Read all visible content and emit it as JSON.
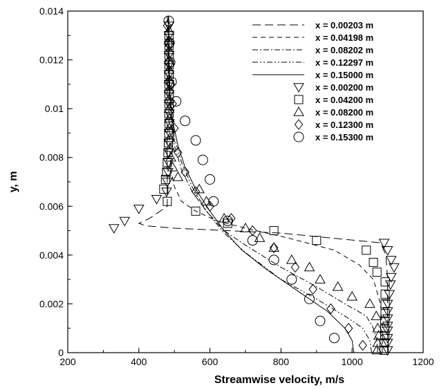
{
  "chart_data": {
    "type": "line",
    "xlabel": "Streamwise velocity, m/s",
    "ylabel": "y, m",
    "xlim": [
      200,
      1200
    ],
    "ylim": [
      0,
      0.014
    ],
    "xticks": [
      "200",
      "400",
      "600",
      "800",
      "1000",
      "1200"
    ],
    "yticks": [
      "0",
      "0.002",
      "0.004",
      "0.006",
      "0.008",
      "0.01",
      "0.012",
      "0.014"
    ],
    "grid": false,
    "legend_position": "top-right",
    "series": [
      {
        "name": "x = 0.00203 m",
        "kind": "line",
        "dash": "long-dash",
        "points": [
          [
            1100,
            0
          ],
          [
            1100,
            0.0015
          ],
          [
            1100,
            0.003
          ],
          [
            1095,
            0.004
          ],
          [
            1080,
            0.0045
          ],
          [
            800,
            0.0049
          ],
          [
            500,
            0.0051
          ],
          [
            420,
            0.0052
          ],
          [
            400,
            0.0053
          ],
          [
            430,
            0.0055
          ],
          [
            480,
            0.006
          ],
          [
            480,
            0.008
          ],
          [
            480,
            0.0138
          ]
        ]
      },
      {
        "name": "x = 0.04198 m",
        "kind": "line",
        "dash": "dash",
        "points": [
          [
            1085,
            0
          ],
          [
            1085,
            0.001
          ],
          [
            1080,
            0.002
          ],
          [
            1060,
            0.003
          ],
          [
            1020,
            0.0036
          ],
          [
            950,
            0.0042
          ],
          [
            820,
            0.0047
          ],
          [
            700,
            0.0051
          ],
          [
            620,
            0.0054
          ],
          [
            560,
            0.0058
          ],
          [
            520,
            0.0062
          ],
          [
            500,
            0.0068
          ],
          [
            490,
            0.0075
          ],
          [
            485,
            0.009
          ],
          [
            483,
            0.012
          ],
          [
            482,
            0.0138
          ]
        ]
      },
      {
        "name": "x = 0.08202 m",
        "kind": "line",
        "dash": "dash-dot",
        "points": [
          [
            1072,
            0
          ],
          [
            1070,
            0.0005
          ],
          [
            1060,
            0.001
          ],
          [
            1040,
            0.0015
          ],
          [
            980,
            0.002
          ],
          [
            900,
            0.0027
          ],
          [
            800,
            0.0035
          ],
          [
            700,
            0.0044
          ],
          [
            640,
            0.005
          ],
          [
            590,
            0.0058
          ],
          [
            550,
            0.0066
          ],
          [
            520,
            0.0075
          ],
          [
            500,
            0.0085
          ],
          [
            490,
            0.0095
          ],
          [
            485,
            0.011
          ],
          [
            483,
            0.0138
          ]
        ]
      },
      {
        "name": "x = 0.12297 m",
        "kind": "line",
        "dash": "dash-dot-dot",
        "points": [
          [
            1055,
            0
          ],
          [
            1050,
            0.0005
          ],
          [
            1030,
            0.001
          ],
          [
            980,
            0.0015
          ],
          [
            900,
            0.0022
          ],
          [
            800,
            0.003
          ],
          [
            700,
            0.0041
          ],
          [
            640,
            0.0049
          ],
          [
            590,
            0.0058
          ],
          [
            550,
            0.0068
          ],
          [
            520,
            0.0078
          ],
          [
            500,
            0.0088
          ],
          [
            490,
            0.0098
          ],
          [
            485,
            0.011
          ],
          [
            483,
            0.0138
          ]
        ]
      },
      {
        "name": "x = 0.15000 m",
        "kind": "line",
        "dash": "solid",
        "points": [
          [
            1005,
            0
          ],
          [
            1000,
            0.0005
          ],
          [
            980,
            0.001
          ],
          [
            930,
            0.0017
          ],
          [
            850,
            0.0025
          ],
          [
            760,
            0.0034
          ],
          [
            690,
            0.0042
          ],
          [
            640,
            0.005
          ],
          [
            600,
            0.0058
          ],
          [
            560,
            0.0067
          ],
          [
            530,
            0.0076
          ],
          [
            510,
            0.0085
          ],
          [
            495,
            0.0095
          ],
          [
            488,
            0.0105
          ],
          [
            485,
            0.012
          ],
          [
            484,
            0.0138
          ]
        ]
      },
      {
        "name": "x = 0.00200 m",
        "kind": "marker",
        "marker": "triangle-down",
        "points": [
          [
            1100,
            0.0001
          ],
          [
            1100,
            0.0004
          ],
          [
            1100,
            0.0006
          ],
          [
            1100,
            0.0009
          ],
          [
            1100,
            0.0011
          ],
          [
            1100,
            0.0014
          ],
          [
            1100,
            0.0017
          ],
          [
            1100,
            0.002
          ],
          [
            1105,
            0.0024
          ],
          [
            1108,
            0.0028
          ],
          [
            1110,
            0.0031
          ],
          [
            1118,
            0.0035
          ],
          [
            1110,
            0.0038
          ],
          [
            1100,
            0.0042
          ],
          [
            1090,
            0.0045
          ],
          [
            330,
            0.0051
          ],
          [
            360,
            0.0054
          ],
          [
            400,
            0.0059
          ],
          [
            450,
            0.0063
          ],
          [
            478,
            0.0066
          ],
          [
            480,
            0.007
          ],
          [
            482,
            0.0074
          ],
          [
            483,
            0.0078
          ],
          [
            484,
            0.0082
          ],
          [
            485,
            0.0086
          ],
          [
            486,
            0.009
          ],
          [
            486,
            0.0094
          ],
          [
            486,
            0.0098
          ],
          [
            485,
            0.0102
          ],
          [
            485,
            0.0106
          ],
          [
            485,
            0.011
          ],
          [
            485,
            0.0114
          ],
          [
            485,
            0.0118
          ],
          [
            485,
            0.0122
          ],
          [
            485,
            0.0126
          ],
          [
            485,
            0.013
          ],
          [
            485,
            0.0134
          ]
        ]
      },
      {
        "name": "x = 0.04200 m",
        "kind": "marker",
        "marker": "square",
        "points": [
          [
            1090,
            0.0001
          ],
          [
            1090,
            0.0004
          ],
          [
            1092,
            0.0007
          ],
          [
            1092,
            0.001
          ],
          [
            1092,
            0.0013
          ],
          [
            1093,
            0.0016
          ],
          [
            1093,
            0.002
          ],
          [
            1093,
            0.0024
          ],
          [
            1093,
            0.0029
          ],
          [
            1070,
            0.0033
          ],
          [
            1060,
            0.0037
          ],
          [
            1040,
            0.0042
          ],
          [
            900,
            0.0046
          ],
          [
            780,
            0.005
          ],
          [
            650,
            0.0053
          ],
          [
            560,
            0.0058
          ],
          [
            480,
            0.0062
          ],
          [
            470,
            0.0067
          ],
          [
            475,
            0.0071
          ],
          [
            478,
            0.0074
          ],
          [
            480,
            0.0078
          ],
          [
            482,
            0.0082
          ],
          [
            483,
            0.0086
          ],
          [
            484,
            0.009
          ],
          [
            485,
            0.0094
          ],
          [
            485,
            0.0098
          ],
          [
            485,
            0.0102
          ],
          [
            485,
            0.0106
          ],
          [
            485,
            0.011
          ],
          [
            485,
            0.0114
          ],
          [
            485,
            0.0118
          ],
          [
            485,
            0.0122
          ],
          [
            485,
            0.0126
          ],
          [
            485,
            0.013
          ]
        ]
      },
      {
        "name": "x = 0.08200 m",
        "kind": "marker",
        "marker": "triangle-up",
        "points": [
          [
            1070,
            0.0001
          ],
          [
            1072,
            0.0004
          ],
          [
            1075,
            0.0007
          ],
          [
            1072,
            0.001
          ],
          [
            1068,
            0.0015
          ],
          [
            1050,
            0.002
          ],
          [
            1000,
            0.0023
          ],
          [
            960,
            0.0027
          ],
          [
            910,
            0.003
          ],
          [
            880,
            0.0035
          ],
          [
            830,
            0.0038
          ],
          [
            780,
            0.0043
          ],
          [
            740,
            0.0047
          ],
          [
            700,
            0.0051
          ],
          [
            640,
            0.0055
          ],
          [
            590,
            0.0062
          ],
          [
            570,
            0.0067
          ],
          [
            510,
            0.0072
          ],
          [
            495,
            0.0076
          ],
          [
            490,
            0.008
          ],
          [
            488,
            0.0084
          ],
          [
            487,
            0.0088
          ],
          [
            486,
            0.0092
          ],
          [
            486,
            0.0096
          ],
          [
            485,
            0.01
          ],
          [
            485,
            0.0104
          ],
          [
            485,
            0.0108
          ],
          [
            485,
            0.0112
          ],
          [
            485,
            0.0116
          ],
          [
            485,
            0.012
          ],
          [
            485,
            0.0124
          ],
          [
            485,
            0.0128
          ],
          [
            485,
            0.0132
          ]
        ]
      },
      {
        "name": "x = 0.12300 m",
        "kind": "marker",
        "marker": "diamond",
        "points": [
          [
            1030,
            0.0003
          ],
          [
            990,
            0.001
          ],
          [
            940,
            0.0018
          ],
          [
            890,
            0.0026
          ],
          [
            840,
            0.0035
          ],
          [
            780,
            0.0043
          ],
          [
            720,
            0.005
          ],
          [
            660,
            0.0055
          ],
          [
            600,
            0.006
          ],
          [
            560,
            0.0066
          ],
          [
            530,
            0.0074
          ],
          [
            510,
            0.0082
          ],
          [
            500,
            0.0092
          ],
          [
            495,
            0.0102
          ],
          [
            490,
            0.011
          ],
          [
            488,
            0.0118
          ],
          [
            487,
            0.0126
          ],
          [
            480,
            0.0134
          ]
        ]
      },
      {
        "name": "x = 0.15300 m",
        "kind": "marker",
        "marker": "circle",
        "points": [
          [
            950,
            0.0006
          ],
          [
            910,
            0.0013
          ],
          [
            880,
            0.0022
          ],
          [
            830,
            0.003
          ],
          [
            780,
            0.0038
          ],
          [
            720,
            0.0046
          ],
          [
            650,
            0.0054
          ],
          [
            610,
            0.0062
          ],
          [
            600,
            0.0071
          ],
          [
            580,
            0.0079
          ],
          [
            560,
            0.0087
          ],
          [
            530,
            0.0095
          ],
          [
            505,
            0.0103
          ],
          [
            492,
            0.0111
          ],
          [
            488,
            0.0119
          ],
          [
            486,
            0.0127
          ],
          [
            484,
            0.0136
          ]
        ]
      }
    ]
  }
}
